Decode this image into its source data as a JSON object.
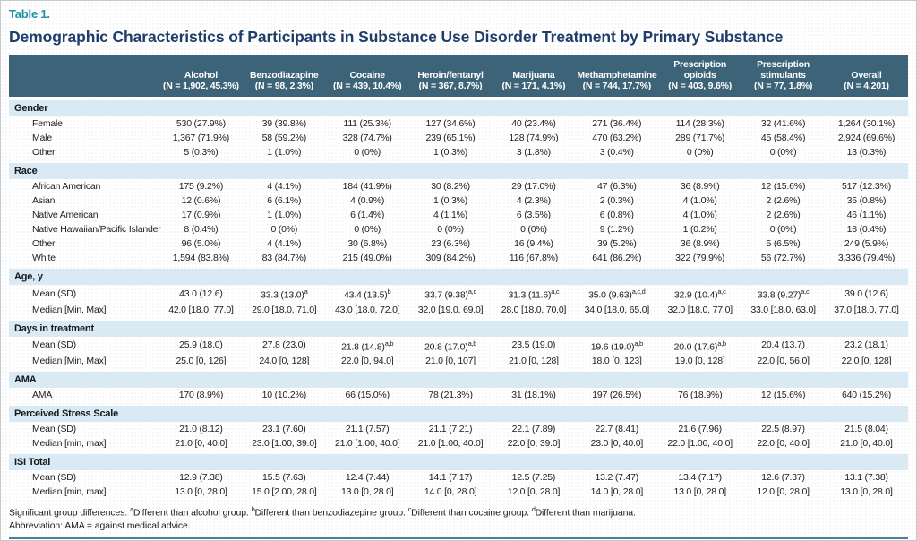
{
  "colors": {
    "header_bg": "#3d6378",
    "header_text": "#ffffff",
    "section_bg": "#d9eaf5",
    "table_label": "#1b8fa6",
    "title": "#1e3d6b",
    "body_text": "#1c1c1c",
    "bottom_rule": "#4e7d97"
  },
  "table_label": "Table 1.",
  "title": "Demographic Characteristics of Participants in Substance Use Disorder Treatment by Primary Substance",
  "columns": [
    {
      "name": "Alcohol",
      "n": "(N = 1,902, 45.3%)"
    },
    {
      "name": "Benzodiazapine",
      "n": "(N = 98, 2.3%)"
    },
    {
      "name": "Cocaine",
      "n": "(N = 439, 10.4%)"
    },
    {
      "name": "Heroin/fentanyl",
      "n": "(N = 367, 8.7%)"
    },
    {
      "name": "Marijuana",
      "n": "(N = 171, 4.1%)"
    },
    {
      "name": "Methamphetamine",
      "n": "(N = 744, 17.7%)"
    },
    {
      "name": "Prescription opioids",
      "n": "(N = 403, 9.6%)"
    },
    {
      "name": "Prescription stimulants",
      "n": "(N = 77, 1.8%)"
    },
    {
      "name": "Overall",
      "n": "(N = 4,201)"
    }
  ],
  "sections": [
    {
      "label": "Gender",
      "rows": [
        {
          "label": "Female",
          "values": [
            "530 (27.9%)",
            "39 (39.8%)",
            "111 (25.3%)",
            "127 (34.6%)",
            "40 (23.4%)",
            "271 (36.4%)",
            "114 (28.3%)",
            "32 (41.6%)",
            "1,264 (30.1%)"
          ]
        },
        {
          "label": "Male",
          "values": [
            "1,367 (71.9%)",
            "58 (59.2%)",
            "328 (74.7%)",
            "239 (65.1%)",
            "128 (74.9%)",
            "470 (63.2%)",
            "289 (71.7%)",
            "45 (58.4%)",
            "2,924 (69.6%)"
          ]
        },
        {
          "label": "Other",
          "values": [
            "5 (0.3%)",
            "1 (1.0%)",
            "0 (0%)",
            "1 (0.3%)",
            "3 (1.8%)",
            "3 (0.4%)",
            "0 (0%)",
            "0 (0%)",
            "13 (0.3%)"
          ]
        }
      ]
    },
    {
      "label": "Race",
      "rows": [
        {
          "label": "African American",
          "values": [
            "175 (9.2%)",
            "4 (4.1%)",
            "184 (41.9%)",
            "30 (8.2%)",
            "29 (17.0%)",
            "47 (6.3%)",
            "36 (8.9%)",
            "12 (15.6%)",
            "517 (12.3%)"
          ]
        },
        {
          "label": "Asian",
          "values": [
            "12 (0.6%)",
            "6 (6.1%)",
            "4 (0.9%)",
            "1 (0.3%)",
            "4 (2.3%)",
            "2 (0.3%)",
            "4 (1.0%)",
            "2 (2.6%)",
            "35 (0.8%)"
          ]
        },
        {
          "label": "Native American",
          "values": [
            "17 (0.9%)",
            "1 (1.0%)",
            "6 (1.4%)",
            "4 (1.1%)",
            "6 (3.5%)",
            "6 (0.8%)",
            "4 (1.0%)",
            "2 (2.6%)",
            "46 (1.1%)"
          ]
        },
        {
          "label": "Native Hawaiian/Pacific Islander",
          "values": [
            "8 (0.4%)",
            "0 (0%)",
            "0 (0%)",
            "0 (0%)",
            "0 (0%)",
            "9 (1.2%)",
            "1 (0.2%)",
            "0 (0%)",
            "18 (0.4%)"
          ]
        },
        {
          "label": "Other",
          "values": [
            "96 (5.0%)",
            "4 (4.1%)",
            "30 (6.8%)",
            "23 (6.3%)",
            "16 (9.4%)",
            "39 (5.2%)",
            "36 (8.9%)",
            "5 (6.5%)",
            "249 (5.9%)"
          ]
        },
        {
          "label": "White",
          "values": [
            "1,594 (83.8%)",
            "83 (84.7%)",
            "215 (49.0%)",
            "309 (84.2%)",
            "116 (67.8%)",
            "641 (86.2%)",
            "322 (79.9%)",
            "56 (72.7%)",
            "3,336 (79.4%)"
          ]
        }
      ]
    },
    {
      "label": "Age, y",
      "rows": [
        {
          "label": "Mean (SD)",
          "values": [
            "43.0 (12.6)",
            "33.3 (13.0)^a",
            "43.4 (13.5)^b",
            "33.7 (9.38)^a,c",
            "31.3 (11.6)^a,c",
            "35.0 (9.63)^a,c,d",
            "32.9 (10.4)^a,c",
            "33.8 (9.27)^a,c",
            "39.0 (12.6)"
          ]
        },
        {
          "label": "Median [Min, Max]",
          "values": [
            "42.0 [18.0, 77.0]",
            "29.0 [18.0, 71.0]",
            "43.0 [18.0, 72.0]",
            "32.0 [19.0, 69.0]",
            "28.0 [18.0, 70.0]",
            "34.0 [18.0, 65.0]",
            "32.0 [18.0, 77.0]",
            "33.0 [18.0, 63.0]",
            "37.0 [18.0, 77.0]"
          ]
        }
      ]
    },
    {
      "label": "Days in treatment",
      "rows": [
        {
          "label": "Mean (SD)",
          "values": [
            "25.9 (18.0)",
            "27.8 (23.0)",
            "21.8 (14.8)^a,b",
            "20.8 (17.0)^a,b",
            "23.5 (19.0)",
            "19.6 (19.0)^a,b",
            "20.0 (17.6)^a,b",
            "20.4 (13.7)",
            "23.2 (18.1)"
          ]
        },
        {
          "label": "Median [Min, Max]",
          "values": [
            "25.0 [0, 126]",
            "24.0 [0, 128]",
            "22.0 [0, 94.0]",
            "21.0 [0, 107]",
            "21.0 [0, 128]",
            "18.0 [0, 123]",
            "19.0 [0, 128]",
            "22.0 [0, 56.0]",
            "22.0 [0, 128]"
          ]
        }
      ]
    },
    {
      "label": "AMA",
      "rows": [
        {
          "label": "AMA",
          "values": [
            "170 (8.9%)",
            "10 (10.2%)",
            "66 (15.0%)",
            "78 (21.3%)",
            "31 (18.1%)",
            "197 (26.5%)",
            "76 (18.9%)",
            "12 (15.6%)",
            "640 (15.2%)"
          ]
        }
      ]
    },
    {
      "label": "Perceived Stress Scale",
      "rows": [
        {
          "label": "Mean (SD)",
          "values": [
            "21.0 (8.12)",
            "23.1 (7.60)",
            "21.1 (7.57)",
            "21.1 (7.21)",
            "22.1 (7.89)",
            "22.7 (8.41)",
            "21.6 (7.96)",
            "22.5 (8.97)",
            "21.5 (8.04)"
          ]
        },
        {
          "label": "Median [min, max]",
          "values": [
            "21.0 [0, 40.0]",
            "23.0 [1.00, 39.0]",
            "21.0 [1.00, 40.0]",
            "21.0 [1.00, 40.0]",
            "22.0 [0, 39.0]",
            "23.0 [0, 40.0]",
            "22.0 [1.00, 40.0]",
            "22.0 [0, 40.0]",
            "21.0 [0, 40.0]"
          ]
        }
      ]
    },
    {
      "label": "ISI Total",
      "rows": [
        {
          "label": "Mean (SD)",
          "values": [
            "12.9 (7.38)",
            "15.5 (7.63)",
            "12.4 (7.44)",
            "14.1 (7.17)",
            "12.5 (7.25)",
            "13.2 (7.47)",
            "13.4 (7.17)",
            "12.6 (7.37)",
            "13.1 (7.38)"
          ]
        },
        {
          "label": "Median [min, max]",
          "values": [
            "13.0 [0, 28.0]",
            "15.0 [2.00, 28.0]",
            "13.0 [0, 28.0]",
            "14.0 [0, 28.0]",
            "12.0 [0, 28.0]",
            "14.0 [0, 28.0]",
            "13.0 [0, 28.0]",
            "12.0 [0, 28.0]",
            "13.0 [0, 28.0]"
          ]
        }
      ]
    }
  ],
  "footnotes": [
    {
      "parts": [
        {
          "t": "Significant group differences: "
        },
        {
          "s": "a",
          "t": "Different than alcohol group. "
        },
        {
          "s": "b",
          "t": "Different than benzodiazepine group. "
        },
        {
          "s": "c",
          "t": "Different than cocaine group. "
        },
        {
          "s": "d",
          "t": "Different than marijuana."
        }
      ]
    },
    {
      "parts": [
        {
          "t": "Abbreviation: AMA = against medical advice."
        }
      ]
    }
  ]
}
